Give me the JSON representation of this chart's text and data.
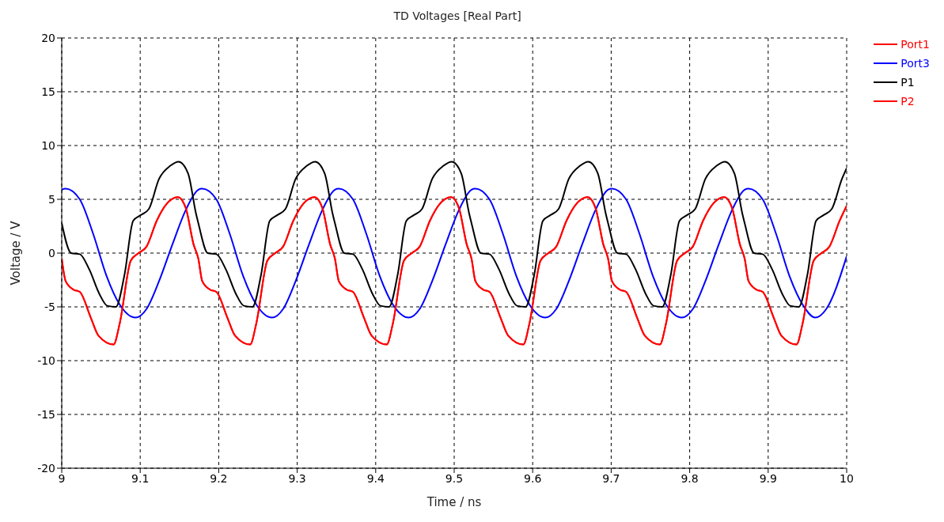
{
  "chart_data": {
    "type": "line",
    "title": "TD Voltages [Real Part]",
    "xlabel": "Time / ns",
    "ylabel": "Voltage / V",
    "xlim": [
      9,
      10
    ],
    "xticks": [
      9,
      9.1,
      9.2,
      9.3,
      9.4,
      9.5,
      9.6,
      9.7,
      9.8,
      9.9,
      10
    ],
    "ylim": [
      -20,
      20
    ],
    "yticks": [
      -20,
      -15,
      -10,
      -5,
      0,
      5,
      10,
      15,
      20
    ],
    "grid": true,
    "legend": "right",
    "series": [
      {
        "name": "Port1",
        "color": "#ff0000",
        "x": [
          9.0,
          9.005,
          9.015,
          9.023,
          9.037,
          9.047,
          9.066,
          9.074,
          9.088,
          9.098,
          9.108,
          9.121,
          9.134,
          9.148,
          9.158,
          9.168,
          9.174,
          9.179,
          9.189,
          9.197,
          9.211,
          9.221,
          9.24,
          9.248,
          9.262,
          9.272,
          9.282,
          9.295,
          9.308,
          9.322,
          9.332,
          9.342,
          9.348,
          9.353,
          9.363,
          9.371,
          9.385,
          9.395,
          9.414,
          9.422,
          9.436,
          9.446,
          9.456,
          9.469,
          9.482,
          9.496,
          9.506,
          9.516,
          9.522,
          9.527,
          9.537,
          9.545,
          9.559,
          9.569,
          9.588,
          9.596,
          9.61,
          9.62,
          9.63,
          9.643,
          9.656,
          9.67,
          9.68,
          9.69,
          9.696,
          9.701,
          9.711,
          9.719,
          9.733,
          9.743,
          9.762,
          9.77,
          9.784,
          9.794,
          9.804,
          9.817,
          9.83,
          9.844,
          9.854,
          9.864,
          9.87,
          9.875,
          9.885,
          9.893,
          9.907,
          9.917,
          9.936,
          9.944,
          9.958,
          9.968,
          9.978,
          9.991,
          10.0
        ],
        "values": [
          -0.5,
          -2.6,
          -3.4,
          -3.6,
          -6,
          -7.7,
          -8.5,
          -6.5,
          -0.7,
          0,
          0.6,
          3,
          4.6,
          5.2,
          4.2,
          0.8,
          -0.5,
          -2.6,
          -3.4,
          -3.6,
          -6,
          -7.7,
          -8.5,
          -6.5,
          -0.7,
          0,
          0.6,
          3,
          4.6,
          5.2,
          4.2,
          0.8,
          -0.5,
          -2.6,
          -3.4,
          -3.6,
          -6,
          -7.7,
          -8.5,
          -6.5,
          -0.7,
          0,
          0.6,
          3,
          4.6,
          5.2,
          4.2,
          0.8,
          -0.5,
          -2.6,
          -3.4,
          -3.6,
          -6,
          -7.7,
          -8.5,
          -6.5,
          -0.7,
          0,
          0.6,
          3,
          4.6,
          5.2,
          4.2,
          0.8,
          -0.5,
          -2.6,
          -3.4,
          -3.6,
          -6,
          -7.7,
          -8.5,
          -6.5,
          -0.7,
          0,
          0.6,
          3,
          4.6,
          5.2,
          4.2,
          0.8,
          -0.5,
          -2.6,
          -3.4,
          -3.6,
          -6,
          -7.7,
          -8.5,
          -6.5,
          -0.7,
          0,
          0.6,
          3,
          4.4
        ]
      },
      {
        "name": "Port3",
        "color": "#0000ff",
        "x": [
          9.0,
          9.005,
          9.023,
          9.04,
          9.057,
          9.074,
          9.094,
          9.108,
          9.124,
          9.141,
          9.158,
          9.174,
          9.179,
          9.197,
          9.214,
          9.231,
          9.248,
          9.268,
          9.282,
          9.298,
          9.315,
          9.332,
          9.348,
          9.353,
          9.371,
          9.388,
          9.405,
          9.422,
          9.442,
          9.456,
          9.472,
          9.489,
          9.506,
          9.522,
          9.527,
          9.545,
          9.562,
          9.579,
          9.596,
          9.616,
          9.63,
          9.646,
          9.663,
          9.68,
          9.696,
          9.701,
          9.719,
          9.736,
          9.753,
          9.77,
          9.79,
          9.804,
          9.82,
          9.837,
          9.854,
          9.87,
          9.875,
          9.893,
          9.91,
          9.927,
          9.944,
          9.96,
          9.974,
          10.0
        ],
        "values": [
          5.9,
          6,
          5,
          1.8,
          -2.1,
          -4.8,
          -6,
          -5.2,
          -2.6,
          0.8,
          4,
          5.9,
          6,
          5,
          1.8,
          -2.1,
          -4.8,
          -6,
          -5.2,
          -2.6,
          0.8,
          4,
          5.9,
          6,
          5,
          1.8,
          -2.1,
          -4.8,
          -6,
          -5.2,
          -2.6,
          0.8,
          4,
          5.9,
          6,
          5,
          1.8,
          -2.1,
          -4.8,
          -6,
          -5.2,
          -2.6,
          0.8,
          4,
          5.9,
          6,
          5,
          1.8,
          -2.1,
          -4.8,
          -6,
          -5.2,
          -2.6,
          0.8,
          4,
          5.9,
          6,
          5,
          1.8,
          -2.1,
          -4.8,
          -6,
          -5.2,
          -0.3
        ]
      },
      {
        "name": "P1",
        "color": "#000000",
        "x": [
          9.0,
          9.012,
          9.023,
          9.035,
          9.048,
          9.058,
          9.069,
          9.08,
          9.091,
          9.1,
          9.111,
          9.124,
          9.138,
          9.149,
          9.161,
          9.171,
          9.174,
          9.186,
          9.197,
          9.209,
          9.222,
          9.232,
          9.243,
          9.254,
          9.265,
          9.274,
          9.285,
          9.298,
          9.312,
          9.323,
          9.335,
          9.345,
          9.348,
          9.36,
          9.371,
          9.383,
          9.396,
          9.406,
          9.417,
          9.428,
          9.439,
          9.448,
          9.459,
          9.472,
          9.486,
          9.497,
          9.509,
          9.519,
          9.522,
          9.534,
          9.545,
          9.557,
          9.57,
          9.58,
          9.591,
          9.602,
          9.613,
          9.622,
          9.633,
          9.646,
          9.66,
          9.671,
          9.683,
          9.693,
          9.696,
          9.708,
          9.719,
          9.731,
          9.744,
          9.754,
          9.765,
          9.776,
          9.787,
          9.796,
          9.807,
          9.82,
          9.834,
          9.845,
          9.857,
          9.867,
          9.87,
          9.882,
          9.893,
          9.905,
          9.918,
          9.928,
          9.939,
          9.95,
          9.961,
          9.97,
          9.981,
          9.994,
          10.0
        ],
        "values": [
          2.8,
          0,
          -0.1,
          -1.5,
          -3.8,
          -4.9,
          -5,
          -2,
          3,
          3.5,
          4.1,
          6.9,
          8.1,
          8.5,
          7.4,
          3.7,
          2.8,
          0,
          -0.1,
          -1.5,
          -3.8,
          -4.9,
          -5,
          -2,
          3,
          3.5,
          4.1,
          6.9,
          8.1,
          8.5,
          7.4,
          3.7,
          2.8,
          0,
          -0.1,
          -1.5,
          -3.8,
          -4.9,
          -5,
          -2,
          3,
          3.5,
          4.1,
          6.9,
          8.1,
          8.5,
          7.4,
          3.7,
          2.8,
          0,
          -0.1,
          -1.5,
          -3.8,
          -4.9,
          -5,
          -2,
          3,
          3.5,
          4.1,
          6.9,
          8.1,
          8.5,
          7.4,
          3.7,
          2.8,
          0,
          -0.1,
          -1.5,
          -3.8,
          -4.9,
          -5,
          -2,
          3,
          3.5,
          4.1,
          6.9,
          8.1,
          8.5,
          7.4,
          3.7,
          2.8,
          0,
          -0.1,
          -1.5,
          -3.8,
          -4.9,
          -5,
          -2,
          3,
          3.5,
          4.1,
          6.9,
          7.9
        ]
      },
      {
        "name": "P2",
        "color": "#ff0000",
        "x": [
          9.0,
          9.005,
          9.015,
          9.023,
          9.037,
          9.047,
          9.066,
          9.074,
          9.088,
          9.098,
          9.108,
          9.121,
          9.134,
          9.148,
          9.158,
          9.168,
          9.174,
          9.179,
          9.189,
          9.197,
          9.211,
          9.221,
          9.24,
          9.248,
          9.262,
          9.272,
          9.282,
          9.295,
          9.308,
          9.322,
          9.332,
          9.342,
          9.348,
          9.353,
          9.363,
          9.371,
          9.385,
          9.395,
          9.414,
          9.422,
          9.436,
          9.446,
          9.456,
          9.469,
          9.482,
          9.496,
          9.506,
          9.516,
          9.522,
          9.527,
          9.537,
          9.545,
          9.559,
          9.569,
          9.588,
          9.596,
          9.61,
          9.62,
          9.63,
          9.643,
          9.656,
          9.67,
          9.68,
          9.69,
          9.696,
          9.701,
          9.711,
          9.719,
          9.733,
          9.743,
          9.762,
          9.77,
          9.784,
          9.794,
          9.804,
          9.817,
          9.83,
          9.844,
          9.854,
          9.864,
          9.87,
          9.875,
          9.885,
          9.893,
          9.907,
          9.917,
          9.936,
          9.944,
          9.958,
          9.968,
          9.978,
          9.991,
          10.0
        ],
        "values": [
          -0.5,
          -2.6,
          -3.4,
          -3.6,
          -6,
          -7.7,
          -8.5,
          -6.5,
          -0.7,
          0,
          0.6,
          3,
          4.6,
          5.2,
          4.2,
          0.8,
          -0.5,
          -2.6,
          -3.4,
          -3.6,
          -6,
          -7.7,
          -8.5,
          -6.5,
          -0.7,
          0,
          0.6,
          3,
          4.6,
          5.2,
          4.2,
          0.8,
          -0.5,
          -2.6,
          -3.4,
          -3.6,
          -6,
          -7.7,
          -8.5,
          -6.5,
          -0.7,
          0,
          0.6,
          3,
          4.6,
          5.2,
          4.2,
          0.8,
          -0.5,
          -2.6,
          -3.4,
          -3.6,
          -6,
          -7.7,
          -8.5,
          -6.5,
          -0.7,
          0,
          0.6,
          3,
          4.6,
          5.2,
          4.2,
          0.8,
          -0.5,
          -2.6,
          -3.4,
          -3.6,
          -6,
          -7.7,
          -8.5,
          -6.5,
          -0.7,
          0,
          0.6,
          3,
          4.6,
          5.2,
          4.2,
          0.8,
          -0.5,
          -2.6,
          -3.4,
          -3.6,
          -6,
          -7.7,
          -8.5,
          -6.5,
          -0.7,
          0,
          0.6,
          3,
          4.4
        ]
      }
    ]
  }
}
